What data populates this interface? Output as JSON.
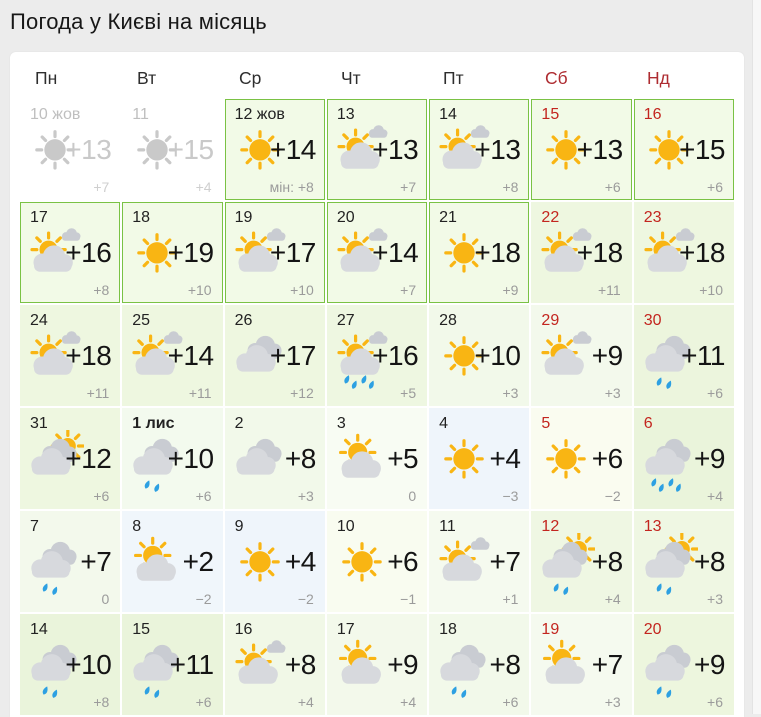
{
  "title": "Погода у Києві на місяць",
  "colors": {
    "page_bg": "#ececec",
    "card_bg": "#ffffff",
    "highlight_border": "#7ac244",
    "weekend_header_red": "#ae2c31",
    "weekend_day_red": "#c3251f",
    "sun_yellow": "#f9b513",
    "cloud_front_gray": "#d7d9dd",
    "cloud_back_gray": "#c9ccd2",
    "rain_blue": "#2da0e2",
    "past_gray": "#c9c9c9",
    "min_temp_gray": "#9b9b9b"
  },
  "weekday_header": [
    {
      "label": "Пн",
      "weekend": false
    },
    {
      "label": "Вт",
      "weekend": false
    },
    {
      "label": "Ср",
      "weekend": false
    },
    {
      "label": "Чт",
      "weekend": false
    },
    {
      "label": "Пт",
      "weekend": false
    },
    {
      "label": "Сб",
      "weekend": true
    },
    {
      "label": "Нд",
      "weekend": true
    }
  ],
  "weeks": [
    [
      {
        "day": "10 жов",
        "icon": "sun",
        "max": "+13",
        "min": "+7",
        "past": true,
        "bg": "#ffffff"
      },
      {
        "day": "11",
        "icon": "sun",
        "max": "+15",
        "min": "+4",
        "past": true,
        "bg": "#ffffff"
      },
      {
        "day": "12 жов",
        "icon": "sun",
        "max": "+14",
        "min": "мін: +8",
        "highlight": true,
        "bg": "#f2fae7"
      },
      {
        "day": "13",
        "icon": "sun-cloud-small",
        "max": "+13",
        "min": "+7",
        "highlight": true,
        "bg": "#f2fae7"
      },
      {
        "day": "14",
        "icon": "sun-cloud-small",
        "max": "+13",
        "min": "+8",
        "highlight": true,
        "bg": "#f2fae7"
      },
      {
        "day": "15",
        "icon": "sun",
        "max": "+13",
        "min": "+6",
        "weekend": true,
        "highlight": true,
        "bg": "#f2fae7"
      },
      {
        "day": "16",
        "icon": "sun",
        "max": "+15",
        "min": "+6",
        "weekend": true,
        "highlight": true,
        "bg": "#f2fae7"
      }
    ],
    [
      {
        "day": "17",
        "icon": "sun-cloud-small",
        "max": "+16",
        "min": "+8",
        "highlight": true,
        "bg": "#f2fae7"
      },
      {
        "day": "18",
        "icon": "sun",
        "max": "+19",
        "min": "+10",
        "highlight": true,
        "bg": "#f2fae7"
      },
      {
        "day": "19",
        "icon": "sun-cloud-small",
        "max": "+17",
        "min": "+10",
        "highlight": true,
        "bg": "#f2fae7"
      },
      {
        "day": "20",
        "icon": "sun-cloud-small",
        "max": "+14",
        "min": "+7",
        "highlight": true,
        "bg": "#f2fae7"
      },
      {
        "day": "21",
        "icon": "sun",
        "max": "+18",
        "min": "+9",
        "highlight": true,
        "bg": "#f2fae7"
      },
      {
        "day": "22",
        "icon": "sun-cloud-small",
        "max": "+18",
        "min": "+11",
        "weekend": true,
        "bg": "#eef7e0"
      },
      {
        "day": "23",
        "icon": "sun-cloud-small",
        "max": "+18",
        "min": "+10",
        "weekend": true,
        "bg": "#eef7e0"
      }
    ],
    [
      {
        "day": "24",
        "icon": "sun-cloud-small",
        "max": "+18",
        "min": "+11",
        "bg": "#eef7e0"
      },
      {
        "day": "25",
        "icon": "sun-cloud-small",
        "max": "+14",
        "min": "+11",
        "bg": "#eef7e0"
      },
      {
        "day": "26",
        "icon": "clouds",
        "max": "+17",
        "min": "+12",
        "bg": "#eef7e0"
      },
      {
        "day": "27",
        "icon": "sun-cloud-small",
        "max": "+16",
        "min": "+5",
        "drops": 4,
        "bg": "#eef7e1"
      },
      {
        "day": "28",
        "icon": "sun",
        "max": "+10",
        "min": "+3",
        "bg": "#f2f9ea"
      },
      {
        "day": "29",
        "icon": "sun-cloud-small",
        "max": "+9",
        "min": "+3",
        "weekend": true,
        "bg": "#f3f9ec"
      },
      {
        "day": "30",
        "icon": "clouds",
        "max": "+11",
        "min": "+6",
        "drops": 2,
        "weekend": true,
        "bg": "#ecf5dd"
      }
    ],
    [
      {
        "day": "31",
        "icon": "clouds-sun",
        "max": "+12",
        "min": "+6",
        "bg": "#eef7e0"
      },
      {
        "day": "1 лис",
        "icon": "clouds",
        "max": "+10",
        "min": "+6",
        "drops": 2,
        "bold": true,
        "bg": "#f3faee"
      },
      {
        "day": "2",
        "icon": "clouds",
        "max": "+8",
        "min": "+3",
        "bg": "#f2f9ea"
      },
      {
        "day": "3",
        "icon": "sun-bigcloud",
        "max": "+5",
        "min": "0",
        "bg": "#f8fcf3"
      },
      {
        "day": "4",
        "icon": "sun",
        "max": "+4",
        "min": "−3",
        "bg": "#eff5fb"
      },
      {
        "day": "5",
        "icon": "sun",
        "max": "+6",
        "min": "−2",
        "weekend": true,
        "bg": "#fafcf0"
      },
      {
        "day": "6",
        "icon": "clouds",
        "max": "+9",
        "min": "+4",
        "drops": 4,
        "weekend": true,
        "bg": "#eaf4db"
      }
    ],
    [
      {
        "day": "7",
        "icon": "clouds",
        "max": "+7",
        "min": "0",
        "drops": 2,
        "bg": "#f3f9ec"
      },
      {
        "day": "8",
        "icon": "sun-bigcloud",
        "max": "+2",
        "min": "−2",
        "bg": "#f0f6fb"
      },
      {
        "day": "9",
        "icon": "sun",
        "max": "+4",
        "min": "−2",
        "bg": "#eff5fb"
      },
      {
        "day": "10",
        "icon": "sun",
        "max": "+6",
        "min": "−1",
        "bg": "#f9fcf0"
      },
      {
        "day": "11",
        "icon": "sun-cloud-small",
        "max": "+7",
        "min": "+1",
        "bg": "#f5faef"
      },
      {
        "day": "12",
        "icon": "clouds-sun",
        "max": "+8",
        "min": "+4",
        "drops": 2,
        "weekend": true,
        "bg": "#eff7e3"
      },
      {
        "day": "13",
        "icon": "clouds-sun",
        "max": "+8",
        "min": "+3",
        "drops": 2,
        "weekend": true,
        "bg": "#eff7e3"
      }
    ],
    [
      {
        "day": "14",
        "icon": "clouds",
        "max": "+10",
        "min": "+8",
        "drops": 2,
        "bg": "#eaf4db"
      },
      {
        "day": "15",
        "icon": "clouds",
        "max": "+11",
        "min": "+6",
        "drops": 2,
        "bg": "#eaf4db"
      },
      {
        "day": "16",
        "icon": "sun-cloud-small",
        "max": "+8",
        "min": "+4",
        "bg": "#f1f8e7"
      },
      {
        "day": "17",
        "icon": "sun-bigcloud",
        "max": "+9",
        "min": "+4",
        "bg": "#f3f9eb"
      },
      {
        "day": "18",
        "icon": "clouds",
        "max": "+8",
        "min": "+6",
        "drops": 2,
        "bg": "#f2f9ea"
      },
      {
        "day": "19",
        "icon": "sun-bigcloud",
        "max": "+7",
        "min": "+3",
        "weekend": true,
        "bg": "#f5faef"
      },
      {
        "day": "20",
        "icon": "clouds",
        "max": "+9",
        "min": "+6",
        "drops": 2,
        "weekend": true,
        "bg": "#edf6de"
      }
    ]
  ]
}
